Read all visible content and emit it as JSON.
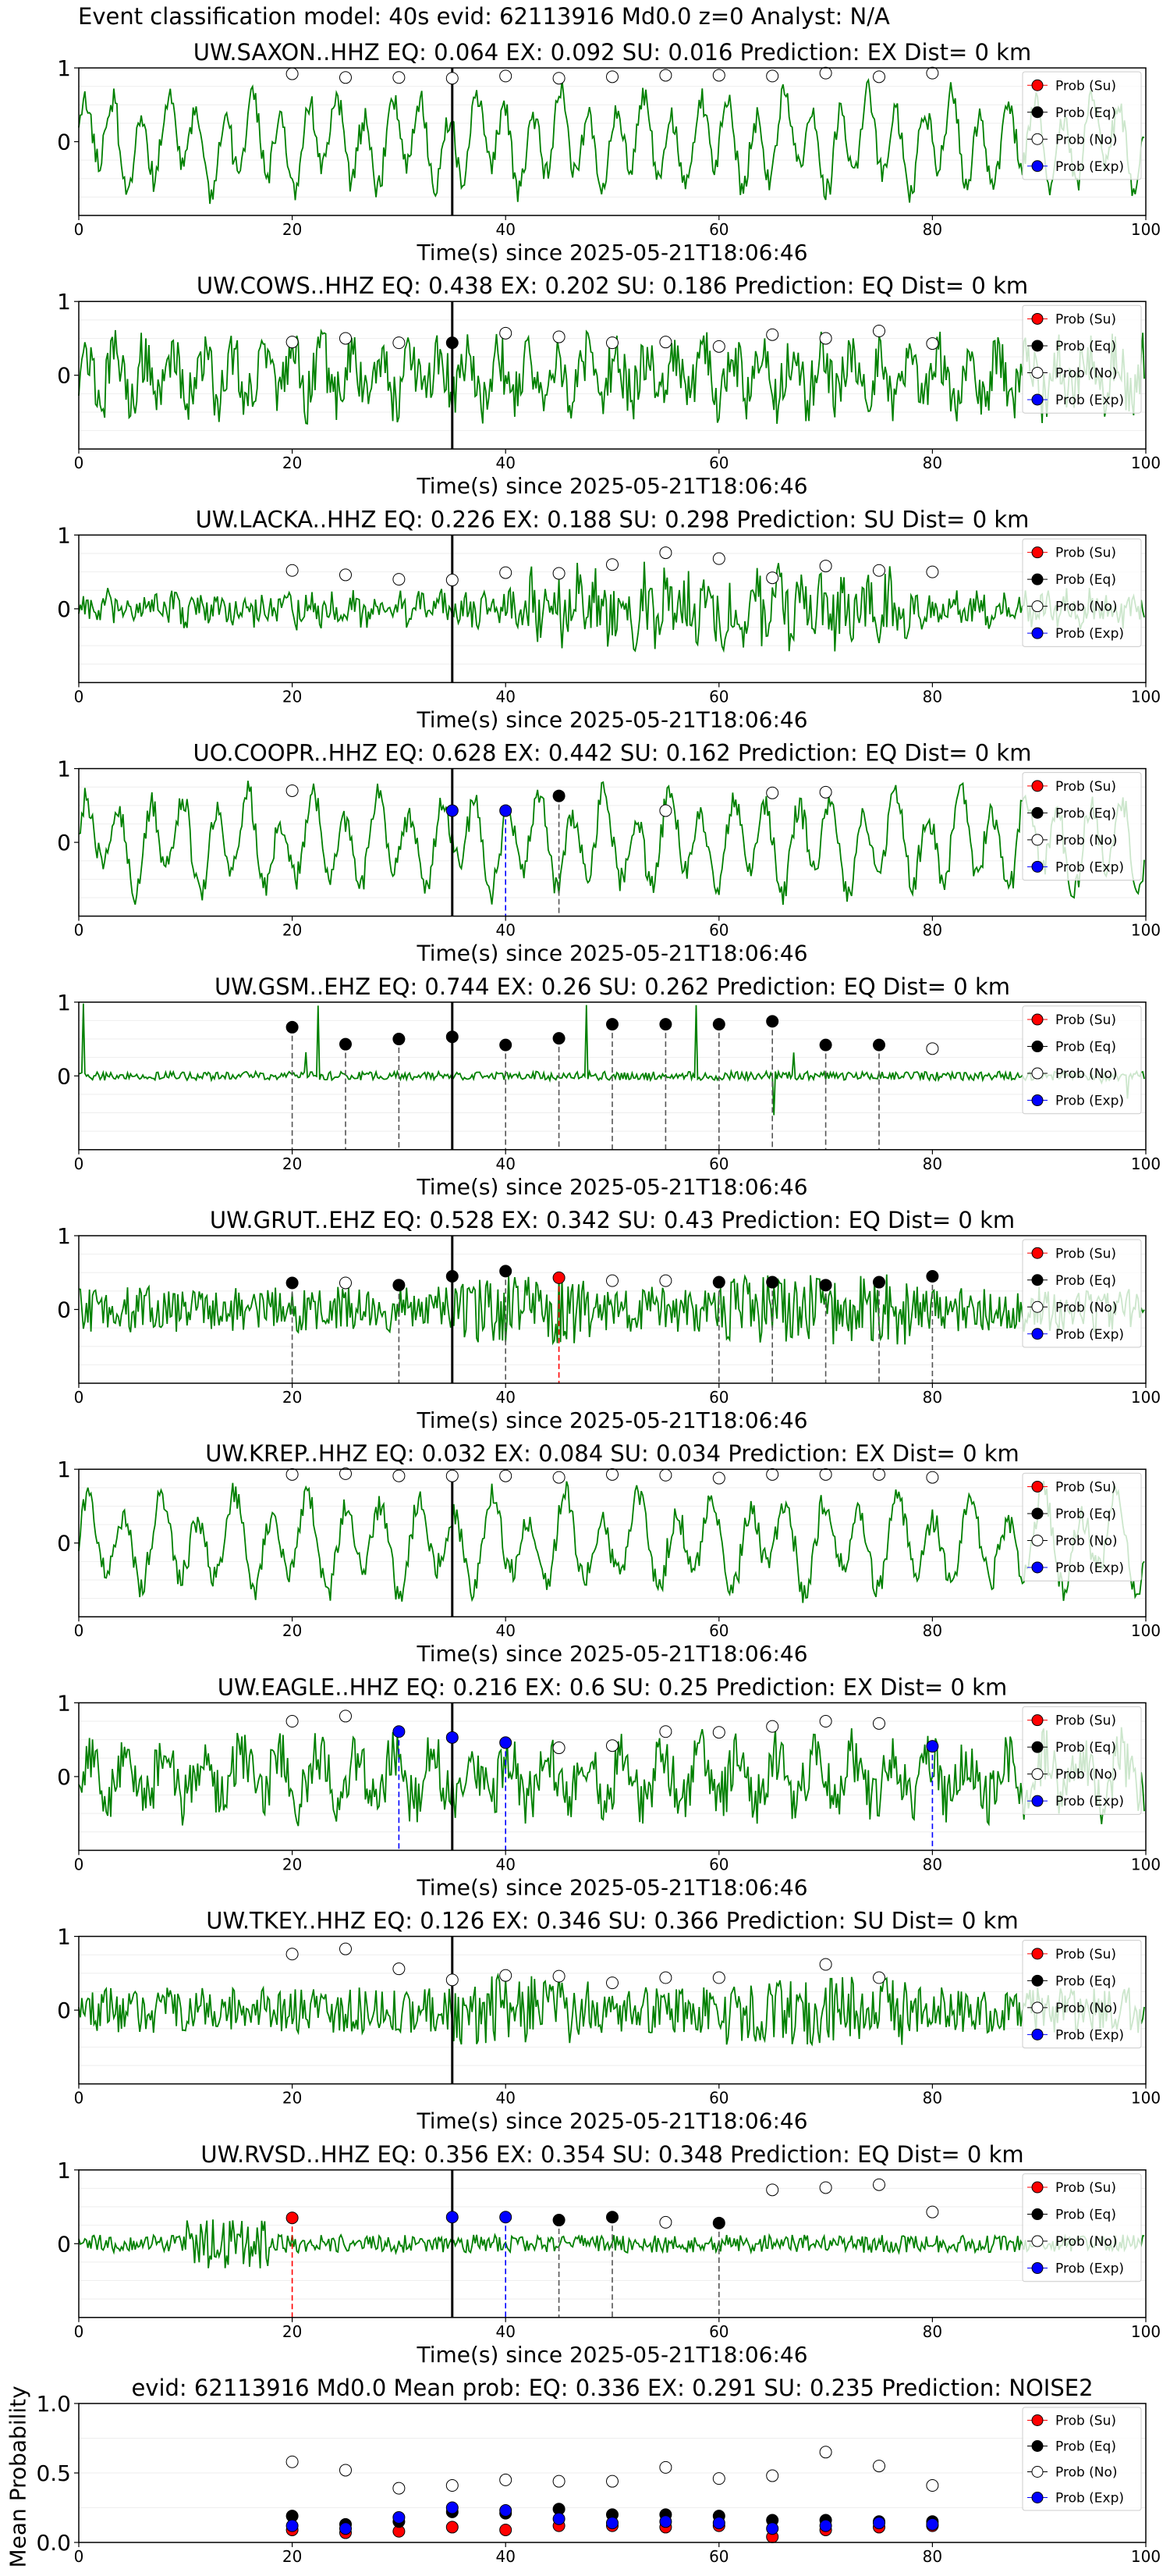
{
  "figure": {
    "suptitle": "Event classification model: 40s evid: 62113916 Md0.0 z=0 Analyst: N/A",
    "xlabel": "Time(s) since 2025-05-21T18:06:46",
    "bottom_ylabel": "Mean Probability"
  },
  "colors": {
    "waveform": "#008000",
    "su": "#ff0000",
    "eq": "#000000",
    "no": "#ffffff",
    "exp": "#0000ff",
    "pick_line": "#000000"
  },
  "legend": [
    "Prob (Su)",
    "Prob (Eq)",
    "Prob (No)",
    "Prob (Exp)"
  ],
  "chart_data": [
    {
      "type": "line",
      "title": "UW.SAXON..HHZ   EQ: 0.064  EX: 0.092  SU: 0.016   Prediction: EX    Dist= 0 km",
      "xlabel": "Time(s) since 2025-05-21T18:06:46",
      "xlim": [
        0,
        100
      ],
      "ylim": [
        -1,
        1
      ],
      "xticks": [
        0,
        20,
        40,
        60,
        80,
        100
      ],
      "yticks": [
        0,
        1
      ],
      "pick": 35,
      "style": "lowfreq",
      "points": [
        {
          "x": 20,
          "y": 0.92,
          "cls": "no"
        },
        {
          "x": 25,
          "y": 0.87,
          "cls": "no"
        },
        {
          "x": 30,
          "y": 0.87,
          "cls": "no"
        },
        {
          "x": 35,
          "y": 0.86,
          "cls": "no"
        },
        {
          "x": 40,
          "y": 0.89,
          "cls": "no"
        },
        {
          "x": 45,
          "y": 0.86,
          "cls": "no"
        },
        {
          "x": 50,
          "y": 0.88,
          "cls": "no"
        },
        {
          "x": 55,
          "y": 0.9,
          "cls": "no"
        },
        {
          "x": 60,
          "y": 0.9,
          "cls": "no"
        },
        {
          "x": 65,
          "y": 0.89,
          "cls": "no"
        },
        {
          "x": 70,
          "y": 0.93,
          "cls": "no"
        },
        {
          "x": 75,
          "y": 0.88,
          "cls": "no"
        },
        {
          "x": 80,
          "y": 0.93,
          "cls": "no"
        }
      ]
    },
    {
      "type": "line",
      "title": "UW.COWS..HHZ   EQ: 0.438  EX: 0.202  SU: 0.186   Prediction: EQ    Dist= 0 km",
      "xlabel": "Time(s) since 2025-05-21T18:06:46",
      "xlim": [
        0,
        100
      ],
      "ylim": [
        -1,
        1
      ],
      "xticks": [
        0,
        20,
        40,
        60,
        80,
        100
      ],
      "yticks": [
        0,
        1
      ],
      "pick": 35,
      "style": "mid",
      "points": [
        {
          "x": 20,
          "y": 0.45,
          "cls": "no"
        },
        {
          "x": 25,
          "y": 0.5,
          "cls": "no"
        },
        {
          "x": 30,
          "y": 0.44,
          "cls": "no"
        },
        {
          "x": 35,
          "y": 0.44,
          "cls": "eq"
        },
        {
          "x": 40,
          "y": 0.57,
          "cls": "no"
        },
        {
          "x": 45,
          "y": 0.52,
          "cls": "no"
        },
        {
          "x": 50,
          "y": 0.44,
          "cls": "no"
        },
        {
          "x": 55,
          "y": 0.45,
          "cls": "no"
        },
        {
          "x": 60,
          "y": 0.39,
          "cls": "no"
        },
        {
          "x": 65,
          "y": 0.55,
          "cls": "no"
        },
        {
          "x": 70,
          "y": 0.5,
          "cls": "no"
        },
        {
          "x": 75,
          "y": 0.6,
          "cls": "no"
        },
        {
          "x": 80,
          "y": 0.43,
          "cls": "no"
        }
      ]
    },
    {
      "type": "line",
      "title": "UW.LACKA..HHZ   EQ: 0.226  EX: 0.188  SU: 0.298   Prediction: SU    Dist= 0 km",
      "xlabel": "Time(s) since 2025-05-21T18:06:46",
      "xlim": [
        0,
        100
      ],
      "ylim": [
        -1,
        1
      ],
      "xticks": [
        0,
        20,
        40,
        60,
        80,
        100
      ],
      "yticks": [
        0,
        1
      ],
      "pick": 35,
      "style": "burst",
      "points": [
        {
          "x": 20,
          "y": 0.52,
          "cls": "no"
        },
        {
          "x": 25,
          "y": 0.46,
          "cls": "no"
        },
        {
          "x": 30,
          "y": 0.4,
          "cls": "no"
        },
        {
          "x": 35,
          "y": 0.39,
          "cls": "no"
        },
        {
          "x": 40,
          "y": 0.49,
          "cls": "no"
        },
        {
          "x": 45,
          "y": 0.48,
          "cls": "no"
        },
        {
          "x": 50,
          "y": 0.6,
          "cls": "no"
        },
        {
          "x": 55,
          "y": 0.76,
          "cls": "no"
        },
        {
          "x": 60,
          "y": 0.68,
          "cls": "no"
        },
        {
          "x": 65,
          "y": 0.42,
          "cls": "no"
        },
        {
          "x": 70,
          "y": 0.58,
          "cls": "no"
        },
        {
          "x": 75,
          "y": 0.52,
          "cls": "no"
        },
        {
          "x": 80,
          "y": 0.5,
          "cls": "no"
        }
      ]
    },
    {
      "type": "line",
      "title": "UO.COOPR..HHZ   EQ: 0.628  EX: 0.442  SU: 0.162   Prediction: EQ    Dist= 0 km",
      "xlabel": "Time(s) since 2025-05-21T18:06:46",
      "xlim": [
        0,
        100
      ],
      "ylim": [
        -1,
        1
      ],
      "xticks": [
        0,
        20,
        40,
        60,
        80,
        100
      ],
      "yticks": [
        0,
        1
      ],
      "pick": 35,
      "style": "lowfreq",
      "points": [
        {
          "x": 20,
          "y": 0.7,
          "cls": "no"
        },
        {
          "x": 35,
          "y": 0.43,
          "cls": "exp"
        },
        {
          "x": 40,
          "y": 0.43,
          "cls": "exp"
        },
        {
          "x": 45,
          "y": 0.63,
          "cls": "eq"
        },
        {
          "x": 55,
          "y": 0.43,
          "cls": "no"
        },
        {
          "x": 65,
          "y": 0.67,
          "cls": "no"
        },
        {
          "x": 70,
          "y": 0.68,
          "cls": "no"
        }
      ]
    },
    {
      "type": "line",
      "title": "UW.GSM..EHZ   EQ: 0.744  EX: 0.26  SU: 0.262   Prediction: EQ    Dist= 0 km",
      "xlabel": "Time(s) since 2025-05-21T18:06:46",
      "xlim": [
        0,
        100
      ],
      "ylim": [
        -1,
        1
      ],
      "xticks": [
        0,
        20,
        40,
        60,
        80,
        100
      ],
      "yticks": [
        0,
        1
      ],
      "pick": 35,
      "style": "spiky",
      "points": [
        {
          "x": 20,
          "y": 0.66,
          "cls": "eq"
        },
        {
          "x": 25,
          "y": 0.43,
          "cls": "eq"
        },
        {
          "x": 30,
          "y": 0.5,
          "cls": "eq"
        },
        {
          "x": 35,
          "y": 0.53,
          "cls": "eq"
        },
        {
          "x": 40,
          "y": 0.42,
          "cls": "eq"
        },
        {
          "x": 45,
          "y": 0.51,
          "cls": "eq"
        },
        {
          "x": 50,
          "y": 0.7,
          "cls": "eq"
        },
        {
          "x": 55,
          "y": 0.7,
          "cls": "eq"
        },
        {
          "x": 60,
          "y": 0.7,
          "cls": "eq"
        },
        {
          "x": 65,
          "y": 0.74,
          "cls": "eq"
        },
        {
          "x": 70,
          "y": 0.42,
          "cls": "eq"
        },
        {
          "x": 75,
          "y": 0.42,
          "cls": "eq"
        },
        {
          "x": 80,
          "y": 0.37,
          "cls": "no"
        }
      ]
    },
    {
      "type": "line",
      "title": "UW.GRUT..EHZ   EQ: 0.528  EX: 0.342  SU: 0.43   Prediction: EQ    Dist= 0 km",
      "xlabel": "Time(s) since 2025-05-21T18:06:46",
      "xlim": [
        0,
        100
      ],
      "ylim": [
        -1,
        1
      ],
      "xticks": [
        0,
        20,
        40,
        60,
        80,
        100
      ],
      "yticks": [
        0,
        1
      ],
      "pick": 35,
      "style": "highfreq",
      "points": [
        {
          "x": 20,
          "y": 0.36,
          "cls": "eq"
        },
        {
          "x": 25,
          "y": 0.36,
          "cls": "no"
        },
        {
          "x": 30,
          "y": 0.33,
          "cls": "eq"
        },
        {
          "x": 35,
          "y": 0.45,
          "cls": "eq"
        },
        {
          "x": 40,
          "y": 0.52,
          "cls": "eq"
        },
        {
          "x": 45,
          "y": 0.43,
          "cls": "su"
        },
        {
          "x": 50,
          "y": 0.39,
          "cls": "no"
        },
        {
          "x": 55,
          "y": 0.39,
          "cls": "no"
        },
        {
          "x": 60,
          "y": 0.37,
          "cls": "eq"
        },
        {
          "x": 65,
          "y": 0.37,
          "cls": "eq"
        },
        {
          "x": 70,
          "y": 0.33,
          "cls": "eq"
        },
        {
          "x": 75,
          "y": 0.37,
          "cls": "eq"
        },
        {
          "x": 80,
          "y": 0.45,
          "cls": "eq"
        }
      ]
    },
    {
      "type": "line",
      "title": "UW.KREP..HHZ   EQ: 0.032  EX: 0.084  SU: 0.034   Prediction: EX    Dist= 0 km",
      "xlabel": "Time(s) since 2025-05-21T18:06:46",
      "xlim": [
        0,
        100
      ],
      "ylim": [
        -1,
        1
      ],
      "xticks": [
        0,
        20,
        40,
        60,
        80,
        100
      ],
      "yticks": [
        0,
        1
      ],
      "pick": 35,
      "style": "lowfreq",
      "points": [
        {
          "x": 20,
          "y": 0.93,
          "cls": "no"
        },
        {
          "x": 25,
          "y": 0.94,
          "cls": "no"
        },
        {
          "x": 30,
          "y": 0.91,
          "cls": "no"
        },
        {
          "x": 35,
          "y": 0.91,
          "cls": "no"
        },
        {
          "x": 40,
          "y": 0.91,
          "cls": "no"
        },
        {
          "x": 45,
          "y": 0.89,
          "cls": "no"
        },
        {
          "x": 50,
          "y": 0.93,
          "cls": "no"
        },
        {
          "x": 55,
          "y": 0.92,
          "cls": "no"
        },
        {
          "x": 60,
          "y": 0.88,
          "cls": "no"
        },
        {
          "x": 65,
          "y": 0.93,
          "cls": "no"
        },
        {
          "x": 70,
          "y": 0.93,
          "cls": "no"
        },
        {
          "x": 75,
          "y": 0.93,
          "cls": "no"
        },
        {
          "x": 80,
          "y": 0.89,
          "cls": "no"
        }
      ]
    },
    {
      "type": "line",
      "title": "UW.EAGLE..HHZ   EQ: 0.216  EX: 0.6  SU: 0.25   Prediction: EX    Dist= 0 km",
      "xlabel": "Time(s) since 2025-05-21T18:06:46",
      "xlim": [
        0,
        100
      ],
      "ylim": [
        -1,
        1
      ],
      "xticks": [
        0,
        20,
        40,
        60,
        80,
        100
      ],
      "yticks": [
        0,
        1
      ],
      "pick": 35,
      "style": "mid",
      "points": [
        {
          "x": 20,
          "y": 0.75,
          "cls": "no"
        },
        {
          "x": 25,
          "y": 0.82,
          "cls": "no"
        },
        {
          "x": 30,
          "y": 0.61,
          "cls": "exp"
        },
        {
          "x": 35,
          "y": 0.53,
          "cls": "exp"
        },
        {
          "x": 40,
          "y": 0.46,
          "cls": "exp"
        },
        {
          "x": 45,
          "y": 0.39,
          "cls": "no"
        },
        {
          "x": 50,
          "y": 0.42,
          "cls": "no"
        },
        {
          "x": 55,
          "y": 0.61,
          "cls": "no"
        },
        {
          "x": 60,
          "y": 0.6,
          "cls": "no"
        },
        {
          "x": 65,
          "y": 0.68,
          "cls": "no"
        },
        {
          "x": 70,
          "y": 0.75,
          "cls": "no"
        },
        {
          "x": 75,
          "y": 0.72,
          "cls": "no"
        },
        {
          "x": 80,
          "y": 0.41,
          "cls": "exp"
        }
      ]
    },
    {
      "type": "line",
      "title": "UW.TKEY..HHZ   EQ: 0.126  EX: 0.346  SU: 0.366   Prediction: SU    Dist= 0 km",
      "xlabel": "Time(s) since 2025-05-21T18:06:46",
      "xlim": [
        0,
        100
      ],
      "ylim": [
        -1,
        1
      ],
      "xticks": [
        0,
        20,
        40,
        60,
        80,
        100
      ],
      "yticks": [
        0,
        1
      ],
      "pick": 35,
      "style": "highfreq",
      "points": [
        {
          "x": 20,
          "y": 0.76,
          "cls": "no"
        },
        {
          "x": 25,
          "y": 0.83,
          "cls": "no"
        },
        {
          "x": 30,
          "y": 0.56,
          "cls": "no"
        },
        {
          "x": 35,
          "y": 0.41,
          "cls": "no"
        },
        {
          "x": 40,
          "y": 0.47,
          "cls": "no"
        },
        {
          "x": 45,
          "y": 0.46,
          "cls": "no"
        },
        {
          "x": 50,
          "y": 0.37,
          "cls": "no"
        },
        {
          "x": 55,
          "y": 0.44,
          "cls": "no"
        },
        {
          "x": 60,
          "y": 0.44,
          "cls": "no"
        },
        {
          "x": 70,
          "y": 0.62,
          "cls": "no"
        },
        {
          "x": 75,
          "y": 0.44,
          "cls": "no"
        }
      ]
    },
    {
      "type": "line",
      "title": "UW.RVSD..HHZ   EQ: 0.356  EX: 0.354  SU: 0.348   Prediction: EQ    Dist= 0 km",
      "xlabel": "Time(s) since 2025-05-21T18:06:46",
      "xlim": [
        0,
        100
      ],
      "ylim": [
        -1,
        1
      ],
      "xticks": [
        0,
        20,
        40,
        60,
        80,
        100
      ],
      "yticks": [
        0,
        1
      ],
      "pick": 35,
      "style": "quiet",
      "points": [
        {
          "x": 20,
          "y": 0.35,
          "cls": "su"
        },
        {
          "x": 35,
          "y": 0.36,
          "cls": "exp"
        },
        {
          "x": 40,
          "y": 0.36,
          "cls": "exp"
        },
        {
          "x": 45,
          "y": 0.32,
          "cls": "eq"
        },
        {
          "x": 50,
          "y": 0.36,
          "cls": "eq"
        },
        {
          "x": 55,
          "y": 0.29,
          "cls": "no"
        },
        {
          "x": 60,
          "y": 0.28,
          "cls": "eq"
        },
        {
          "x": 65,
          "y": 0.73,
          "cls": "no"
        },
        {
          "x": 70,
          "y": 0.76,
          "cls": "no"
        },
        {
          "x": 75,
          "y": 0.8,
          "cls": "no"
        },
        {
          "x": 80,
          "y": 0.43,
          "cls": "no"
        }
      ]
    },
    {
      "type": "scatter",
      "title": "evid: 62113916  Md0.0   Mean prob:   EQ: 0.336  EX: 0.291  SU: 0.235   Prediction: NOISE2",
      "ylabel": "Mean Probability",
      "xlim": [
        0,
        100
      ],
      "ylim": [
        0,
        1
      ],
      "xticks": [
        0,
        20,
        40,
        60,
        80,
        100
      ],
      "yticks": [
        0.0,
        0.5,
        1.0
      ],
      "x": [
        20,
        25,
        30,
        35,
        40,
        45,
        50,
        55,
        60,
        65,
        70,
        75,
        80
      ],
      "series": [
        {
          "name": "Prob (Su)",
          "cls": "su",
          "values": [
            0.09,
            0.07,
            0.08,
            0.11,
            0.09,
            0.12,
            0.12,
            0.11,
            0.12,
            0.04,
            0.09,
            0.11,
            0.12
          ]
        },
        {
          "name": "Prob (Eq)",
          "cls": "eq",
          "values": [
            0.19,
            0.13,
            0.15,
            0.22,
            0.21,
            0.24,
            0.2,
            0.2,
            0.19,
            0.16,
            0.16,
            0.15,
            0.15
          ]
        },
        {
          "name": "Prob (No)",
          "cls": "no",
          "values": [
            0.58,
            0.52,
            0.39,
            0.41,
            0.45,
            0.44,
            0.44,
            0.54,
            0.46,
            0.48,
            0.65,
            0.55,
            0.41
          ]
        },
        {
          "name": "Prob (Exp)",
          "cls": "exp",
          "values": [
            0.12,
            0.1,
            0.18,
            0.25,
            0.23,
            0.17,
            0.14,
            0.15,
            0.14,
            0.1,
            0.12,
            0.14,
            0.13
          ]
        }
      ]
    }
  ]
}
